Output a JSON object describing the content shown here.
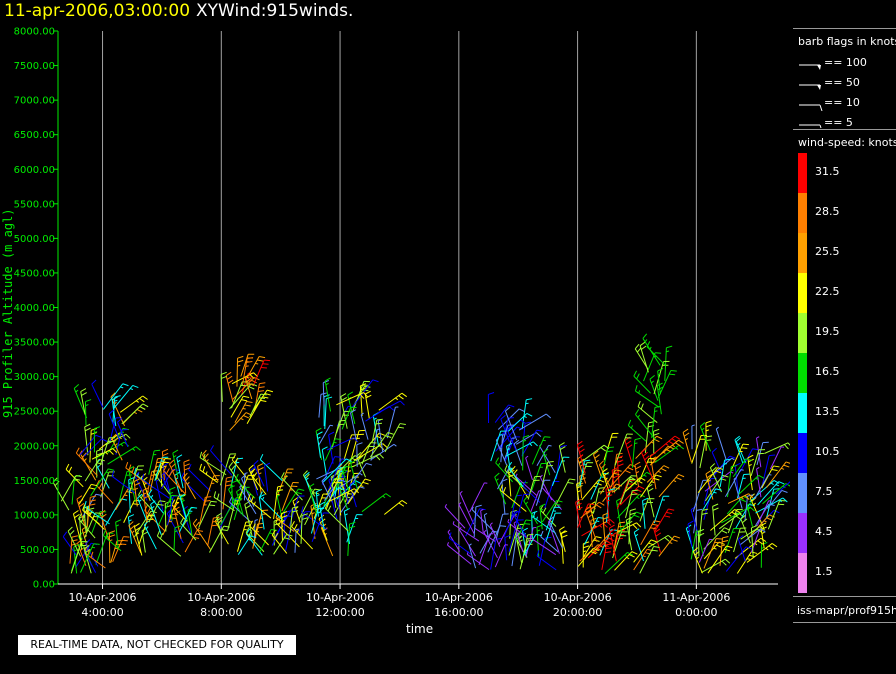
{
  "header": {
    "datetime": "11-apr-2006,03:00:00",
    "product": "XYWind:915winds."
  },
  "chart_data": {
    "type": "wind-barb time-height",
    "ylabel": "915 Profiler Altitude (m agl)",
    "xlabel": "time",
    "ylim": [
      0,
      8000
    ],
    "yticks": [
      0,
      500,
      1000,
      1500,
      2000,
      2500,
      3000,
      3500,
      4000,
      4500,
      5000,
      5500,
      6000,
      6500,
      7000,
      7500,
      8000
    ],
    "ytick_labels": [
      "0.00",
      "500.00",
      "1000.00",
      "1500.00",
      "2000.00",
      "2500.00",
      "3000.00",
      "3500.00",
      "4000.00",
      "4500.00",
      "5000.00",
      "5500.00",
      "6000.00",
      "6500.00",
      "7000.00",
      "7500.00",
      "8000.00"
    ],
    "xlim_hours": [
      2.5,
      26.75
    ],
    "xticks": [
      {
        "hour": 4,
        "date": "10-Apr-2006",
        "time": "4:00:00"
      },
      {
        "hour": 8,
        "date": "10-Apr-2006",
        "time": "8:00:00"
      },
      {
        "hour": 12,
        "date": "10-Apr-2006",
        "time": "12:00:00"
      },
      {
        "hour": 16,
        "date": "10-Apr-2006",
        "time": "16:00:00"
      },
      {
        "hour": 20,
        "date": "10-Apr-2006",
        "time": "20:00:00"
      },
      {
        "hour": 24,
        "date": "11-Apr-2006",
        "time": "0:00:00"
      }
    ],
    "vertical_gridlines": true,
    "barb_groups": [
      {
        "t_start": 2.6,
        "t_end": 4.4,
        "z_min": 150,
        "z_max": 1600,
        "speed_min": 7,
        "speed_max": 29
      },
      {
        "t_start": 3.2,
        "t_end": 5.0,
        "z_min": 1700,
        "z_max": 2600,
        "speed_min": 9,
        "speed_max": 25
      },
      {
        "t_start": 4.4,
        "t_end": 8.4,
        "z_min": 400,
        "z_max": 1600,
        "speed_min": 9,
        "speed_max": 30
      },
      {
        "t_start": 8.0,
        "t_end": 9.2,
        "z_min": 2200,
        "z_max": 3100,
        "speed_min": 18,
        "speed_max": 32
      },
      {
        "t_start": 8.4,
        "t_end": 12.4,
        "z_min": 400,
        "z_max": 1550,
        "speed_min": 7,
        "speed_max": 26
      },
      {
        "t_start": 11.2,
        "t_end": 13.6,
        "z_min": 1000,
        "z_max": 2600,
        "speed_min": 6,
        "speed_max": 24
      },
      {
        "t_start": 16.0,
        "t_end": 17.4,
        "z_min": 200,
        "z_max": 1100,
        "speed_min": 3,
        "speed_max": 10
      },
      {
        "t_start": 17.0,
        "t_end": 18.4,
        "z_min": 1700,
        "z_max": 2600,
        "speed_min": 6,
        "speed_max": 15
      },
      {
        "t_start": 17.2,
        "t_end": 19.6,
        "z_min": 200,
        "z_max": 1800,
        "speed_min": 3,
        "speed_max": 22
      },
      {
        "t_start": 20.0,
        "t_end": 22.8,
        "z_min": 150,
        "z_max": 1900,
        "speed_min": 12,
        "speed_max": 33
      },
      {
        "t_start": 22.2,
        "t_end": 23.0,
        "z_min": 2050,
        "z_max": 3200,
        "speed_min": 15,
        "speed_max": 19
      },
      {
        "t_start": 23.8,
        "t_end": 26.7,
        "z_min": 150,
        "z_max": 1950,
        "speed_min": 3,
        "speed_max": 27
      }
    ]
  },
  "legend": {
    "barb_title": "barb flags in knots",
    "barbs": [
      {
        "kind": "pennant",
        "label": "== 100"
      },
      {
        "kind": "pennant",
        "label": "== 50"
      },
      {
        "kind": "full",
        "label": "== 10"
      },
      {
        "kind": "half",
        "label": "== 5"
      }
    ],
    "speed_title": "wind-speed: knots",
    "colorbar": [
      {
        "label": "31.5",
        "color": "#ff0000"
      },
      {
        "label": "28.5",
        "color": "#ff7f00"
      },
      {
        "label": "25.5",
        "color": "#ffa000"
      },
      {
        "label": "22.5",
        "color": "#ffff00"
      },
      {
        "label": "19.5",
        "color": "#a0ff30"
      },
      {
        "label": "16.5",
        "color": "#00dd00"
      },
      {
        "label": "13.5",
        "color": "#00ffff"
      },
      {
        "label": "10.5",
        "color": "#0000ff"
      },
      {
        "label": "7.5",
        "color": "#6090ff"
      },
      {
        "label": "4.5",
        "color": "#9b30ff"
      },
      {
        "label": "1.5",
        "color": "#ee82ee"
      }
    ]
  },
  "footer": {
    "source": "iss-mapr/prof915h",
    "qc_note": "REAL-TIME DATA, NOT CHECKED FOR QUALITY"
  },
  "colors": {
    "background": "#000000",
    "date_title": "#ffff00",
    "axis": "#00ee00",
    "gridline": "#cccccc"
  }
}
